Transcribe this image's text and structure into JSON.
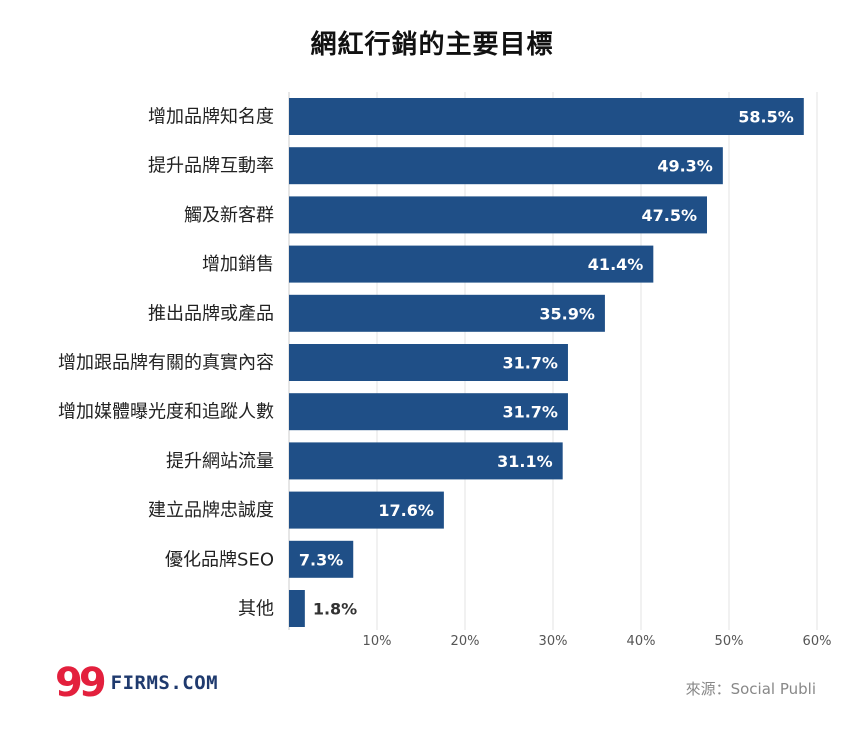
{
  "chart_data": {
    "type": "bar",
    "orientation": "horizontal",
    "title": "網紅行銷的主要目標",
    "categories": [
      "增加品牌知名度",
      "提升品牌互動率",
      "觸及新客群",
      "增加銷售",
      "推出品牌或產品",
      "增加跟品牌有關的真實內容",
      "增加媒體曝光度和追蹤人數",
      "提升網站流量",
      "建立品牌忠誠度",
      "優化品牌SEO",
      "其他"
    ],
    "values": [
      58.5,
      49.3,
      47.5,
      41.4,
      35.9,
      31.7,
      31.7,
      31.1,
      17.6,
      7.3,
      1.8
    ],
    "value_labels": [
      "58.5%",
      "49.3%",
      "47.5%",
      "41.4%",
      "35.9%",
      "31.7%",
      "31.7%",
      "31.1%",
      "17.6%",
      "7.3%",
      "1.8%"
    ],
    "xlim": [
      0,
      60
    ],
    "xticks": [
      10,
      20,
      30,
      40,
      50,
      60
    ],
    "xtick_labels": [
      "10%",
      "20%",
      "30%",
      "40%",
      "50%",
      "60%"
    ],
    "grid": true,
    "colors": {
      "bar": "#1f4f87",
      "value_inside": "#ffffff",
      "value_outside": "#333333",
      "grid": "#e3e3e3"
    }
  },
  "branding": {
    "logo_mark": "99",
    "logo_text": "FIRMS.COM",
    "logo_mark_color": "#e3203d",
    "logo_text_color": "#1f3a6e"
  },
  "source": "來源：Social Publi"
}
